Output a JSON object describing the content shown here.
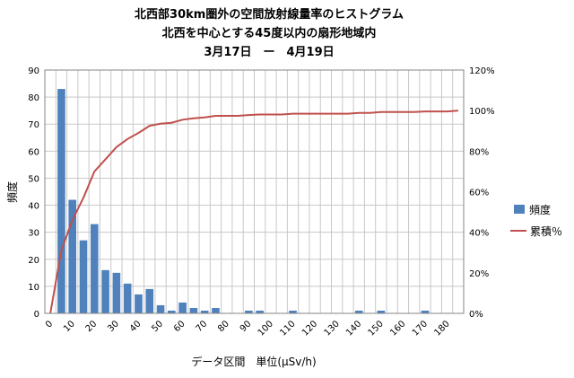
{
  "chart_data": {
    "type": "bar",
    "title_lines": [
      "北西部30km圏外の空間放射線量率のヒストグラム",
      "北西を中心とする45度以内の扇形地域内",
      "3月17日　ー　4月19日"
    ],
    "xlabel": "データ区間　単位(μSv/h)",
    "ylabel": "頻度",
    "x": [
      0,
      5,
      10,
      15,
      20,
      25,
      30,
      35,
      40,
      45,
      50,
      55,
      60,
      65,
      70,
      75,
      80,
      85,
      90,
      95,
      100,
      105,
      110,
      115,
      120,
      125,
      130,
      135,
      140,
      145,
      150,
      155,
      160,
      165,
      170,
      175,
      180,
      185
    ],
    "x_tick_labels": [
      "0",
      "10",
      "20",
      "30",
      "40",
      "50",
      "60",
      "70",
      "80",
      "90",
      "100",
      "110",
      "120",
      "130",
      "140",
      "150",
      "160",
      "170",
      "180"
    ],
    "y_ticks_left": [
      "0",
      "10",
      "20",
      "30",
      "40",
      "50",
      "60",
      "70",
      "80",
      "90"
    ],
    "y_ticks_right": [
      "0%",
      "20%",
      "40%",
      "60%",
      "80%",
      "100%",
      "120%"
    ],
    "ylim": [
      0,
      90
    ],
    "y2lim": [
      0,
      120
    ],
    "grid": true,
    "legend_position": "right",
    "series": [
      {
        "name": "頻度",
        "kind": "bar",
        "color": "#4f81bd",
        "values": [
          0,
          83,
          42,
          27,
          33,
          16,
          15,
          11,
          7,
          9,
          3,
          1,
          4,
          2,
          1,
          2,
          0,
          0,
          1,
          1,
          0,
          0,
          1,
          0,
          0,
          0,
          0,
          0,
          1,
          0,
          1,
          0,
          0,
          0,
          1,
          0,
          0,
          0
        ]
      },
      {
        "name": "累積％",
        "kind": "line",
        "axis": "right",
        "color": "#c0504d",
        "values": [
          0,
          31,
          46,
          57,
          70,
          76,
          82,
          86,
          89,
          92.5,
          93.5,
          94,
          95.5,
          96.2,
          96.6,
          97.4,
          97.4,
          97.4,
          97.8,
          98.1,
          98.1,
          98.1,
          98.5,
          98.5,
          98.5,
          98.5,
          98.5,
          98.5,
          98.9,
          98.9,
          99.3,
          99.3,
          99.3,
          99.3,
          99.6,
          99.6,
          99.6,
          100
        ]
      }
    ]
  }
}
